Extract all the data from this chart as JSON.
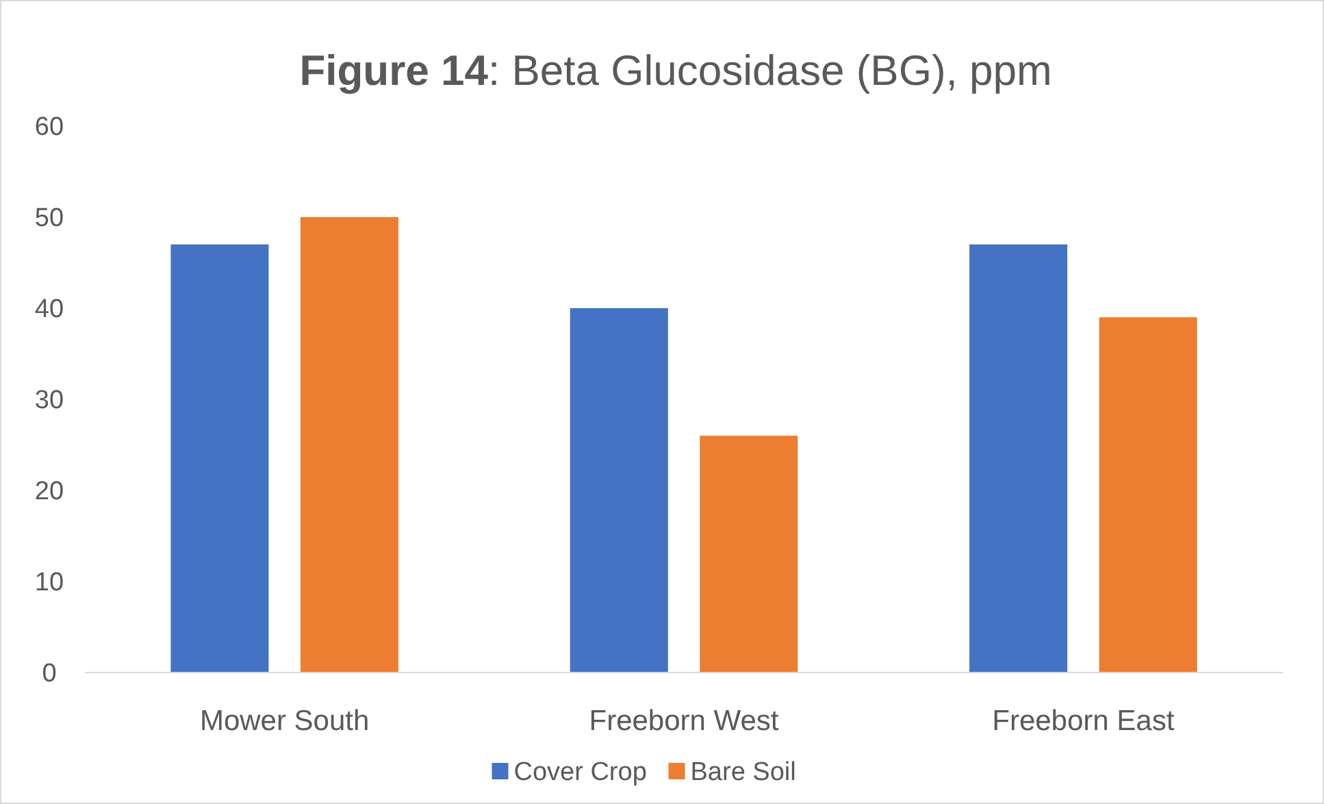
{
  "chart_data": {
    "type": "bar",
    "title": "Figure 14: Beta Glucosidase (BG), ppm",
    "categories": [
      "Mower South",
      "Freeborn West",
      "Freeborn East"
    ],
    "series": [
      {
        "name": "Cover Crop",
        "color": "#4472c4",
        "values": [
          47,
          40,
          47
        ]
      },
      {
        "name": "Bare Soil",
        "color": "#ed7d31",
        "values": [
          50,
          26,
          39
        ]
      }
    ],
    "ylim": [
      0,
      60
    ],
    "yticks": [
      0,
      10,
      20,
      30,
      40,
      50,
      60
    ],
    "grid": false,
    "legend": "bottom"
  }
}
